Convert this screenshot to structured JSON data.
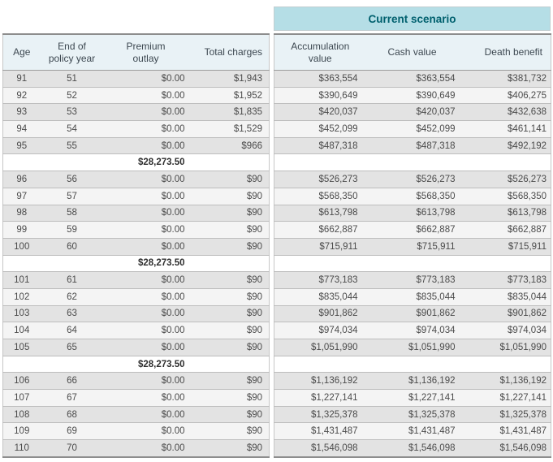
{
  "scenario": {
    "label": "Current scenario",
    "band_bg": "#b5dee6",
    "band_text_color": "#00606e"
  },
  "columns": {
    "left": [
      "Age",
      "End of\npolicy year",
      "Premium\noutlay",
      "Total charges"
    ],
    "right": [
      "Accumulation\nvalue",
      "Cash value",
      "Death benefit"
    ]
  },
  "rows": [
    {
      "age": "91",
      "year": "51",
      "premium": "$0.00",
      "charges": "$1,943",
      "acc": "$363,554",
      "cash": "$363,554",
      "death": "$381,732"
    },
    {
      "age": "92",
      "year": "52",
      "premium": "$0.00",
      "charges": "$1,952",
      "acc": "$390,649",
      "cash": "$390,649",
      "death": "$406,275"
    },
    {
      "age": "93",
      "year": "53",
      "premium": "$0.00",
      "charges": "$1,835",
      "acc": "$420,037",
      "cash": "$420,037",
      "death": "$432,638"
    },
    {
      "age": "94",
      "year": "54",
      "premium": "$0.00",
      "charges": "$1,529",
      "acc": "$452,099",
      "cash": "$452,099",
      "death": "$461,141"
    },
    {
      "age": "95",
      "year": "55",
      "premium": "$0.00",
      "charges": "$966",
      "acc": "$487,318",
      "cash": "$487,318",
      "death": "$492,192"
    },
    {
      "subtotal": "$28,273.50"
    },
    {
      "age": "96",
      "year": "56",
      "premium": "$0.00",
      "charges": "$90",
      "acc": "$526,273",
      "cash": "$526,273",
      "death": "$526,273"
    },
    {
      "age": "97",
      "year": "57",
      "premium": "$0.00",
      "charges": "$90",
      "acc": "$568,350",
      "cash": "$568,350",
      "death": "$568,350"
    },
    {
      "age": "98",
      "year": "58",
      "premium": "$0.00",
      "charges": "$90",
      "acc": "$613,798",
      "cash": "$613,798",
      "death": "$613,798"
    },
    {
      "age": "99",
      "year": "59",
      "premium": "$0.00",
      "charges": "$90",
      "acc": "$662,887",
      "cash": "$662,887",
      "death": "$662,887"
    },
    {
      "age": "100",
      "year": "60",
      "premium": "$0.00",
      "charges": "$90",
      "acc": "$715,911",
      "cash": "$715,911",
      "death": "$715,911"
    },
    {
      "subtotal": "$28,273.50"
    },
    {
      "age": "101",
      "year": "61",
      "premium": "$0.00",
      "charges": "$90",
      "acc": "$773,183",
      "cash": "$773,183",
      "death": "$773,183"
    },
    {
      "age": "102",
      "year": "62",
      "premium": "$0.00",
      "charges": "$90",
      "acc": "$835,044",
      "cash": "$835,044",
      "death": "$835,044"
    },
    {
      "age": "103",
      "year": "63",
      "premium": "$0.00",
      "charges": "$90",
      "acc": "$901,862",
      "cash": "$901,862",
      "death": "$901,862"
    },
    {
      "age": "104",
      "year": "64",
      "premium": "$0.00",
      "charges": "$90",
      "acc": "$974,034",
      "cash": "$974,034",
      "death": "$974,034"
    },
    {
      "age": "105",
      "year": "65",
      "premium": "$0.00",
      "charges": "$90",
      "acc": "$1,051,990",
      "cash": "$1,051,990",
      "death": "$1,051,990"
    },
    {
      "subtotal": "$28,273.50"
    },
    {
      "age": "106",
      "year": "66",
      "premium": "$0.00",
      "charges": "$90",
      "acc": "$1,136,192",
      "cash": "$1,136,192",
      "death": "$1,136,192"
    },
    {
      "age": "107",
      "year": "67",
      "premium": "$0.00",
      "charges": "$90",
      "acc": "$1,227,141",
      "cash": "$1,227,141",
      "death": "$1,227,141"
    },
    {
      "age": "108",
      "year": "68",
      "premium": "$0.00",
      "charges": "$90",
      "acc": "$1,325,378",
      "cash": "$1,325,378",
      "death": "$1,325,378"
    },
    {
      "age": "109",
      "year": "69",
      "premium": "$0.00",
      "charges": "$90",
      "acc": "$1,431,487",
      "cash": "$1,431,487",
      "death": "$1,431,487"
    },
    {
      "age": "110",
      "year": "70",
      "premium": "$0.00",
      "charges": "$90",
      "acc": "$1,546,098",
      "cash": "$1,546,098",
      "death": "$1,546,098"
    }
  ]
}
